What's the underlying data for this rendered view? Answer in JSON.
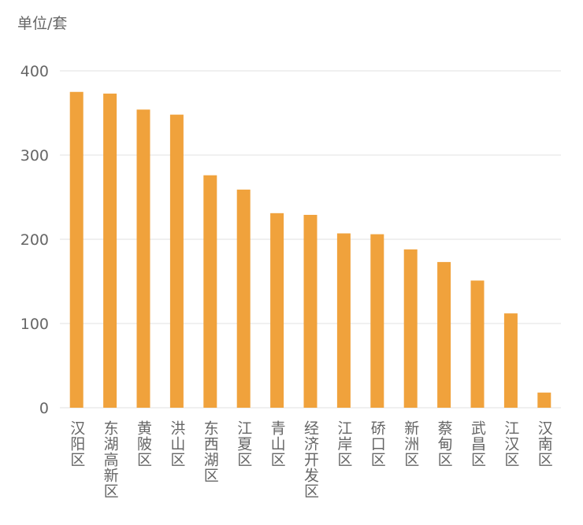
{
  "chart_data": {
    "type": "bar",
    "unit_label": "单位/套",
    "categories": [
      "汉阳区",
      "东湖高新区",
      "黄陂区",
      "洪山区",
      "东西湖区",
      "江夏区",
      "青山区",
      "经济开发区",
      "江岸区",
      "硚口区",
      "新洲区",
      "蔡甸区",
      "武昌区",
      "江汉区",
      "汉南区"
    ],
    "values": [
      375,
      373,
      354,
      348,
      276,
      259,
      231,
      229,
      207,
      206,
      188,
      173,
      151,
      112,
      18
    ],
    "color": "#f0a23c",
    "ylim": [
      0,
      400
    ],
    "yticks": [
      0,
      100,
      200,
      300,
      400
    ],
    "grid": true
  }
}
